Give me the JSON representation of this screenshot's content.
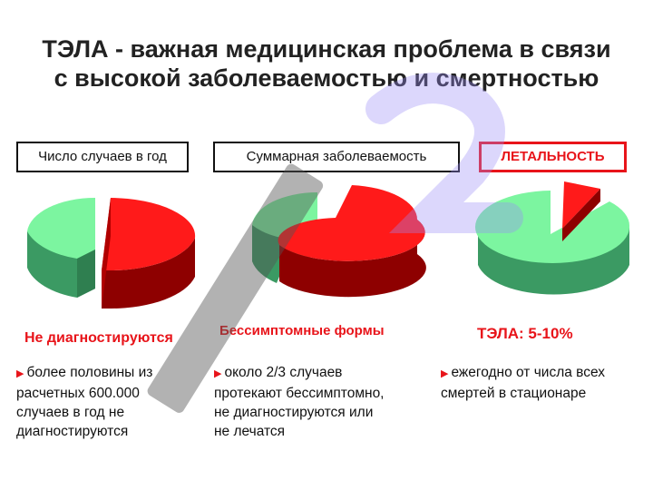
{
  "title": {
    "line1": "ТЭЛА - важная медицинская проблема в связи",
    "line2": "с высокой заболеваемостью и смертностью"
  },
  "boxes": [
    {
      "label": "Число случаев в год"
    },
    {
      "label": "Суммарная заболеваемость"
    },
    {
      "label": "ЛЕТАЛЬНОСТЬ"
    }
  ],
  "captions": [
    {
      "text": "Не диагностируются"
    },
    {
      "text": "Бессимптомные формы"
    },
    {
      "text": "ТЭЛА: 5-10%"
    }
  ],
  "descriptions": [
    {
      "lines": [
        "более половины из",
        "расчетных 600.000",
        "случаев в год не",
        "диагностируются"
      ]
    },
    {
      "lines": [
        "около 2/3 случаев",
        "протекают бессимптомно,",
        "не диагностируются или",
        "не лечатся"
      ]
    },
    {
      "lines": [
        "ежегодно от числа всех",
        "смертей в стационаре"
      ]
    }
  ],
  "bullet_icon": "arrow-bullet-icon",
  "colors": {
    "accent_red": "#e8141a",
    "pie_red_top": "#ff1a1a",
    "pie_red_side": "#8e0000",
    "pie_green_top": "#7cf5a0",
    "pie_green_side": "#3b9a63"
  },
  "pie_shares": [
    {
      "red_fraction": 0.55
    },
    {
      "red_fraction": 0.67
    },
    {
      "red_fraction": 0.07
    }
  ]
}
